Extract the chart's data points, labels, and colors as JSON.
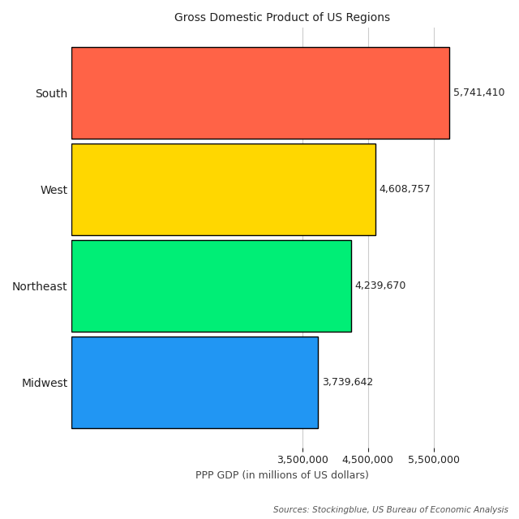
{
  "title": "Gross Domestic Product of US Regions",
  "xlabel": "PPP GDP (in millions of US dollars)",
  "source_text": "Sources: Stockingblue, US Bureau of Economic Analysis",
  "categories": [
    "Midwest",
    "Northeast",
    "West",
    "South"
  ],
  "values": [
    3739642,
    4239670,
    4608757,
    5741410
  ],
  "bar_colors": [
    "#2196F3",
    "#00EE76",
    "#FFD700",
    "#FF6347"
  ],
  "bar_edgecolors": [
    "#000000",
    "#000000",
    "#000000",
    "#000000"
  ],
  "xlim": [
    0,
    6400000
  ],
  "xticks": [
    3500000,
    4500000,
    5500000
  ],
  "value_labels": [
    "3,739,642",
    "4,239,670",
    "4,608,757",
    "5,741,410"
  ],
  "title_fontsize": 10,
  "label_fontsize": 9,
  "tick_fontsize": 9,
  "source_fontsize": 7.5,
  "bar_height": 0.95,
  "background_color": "#ffffff"
}
